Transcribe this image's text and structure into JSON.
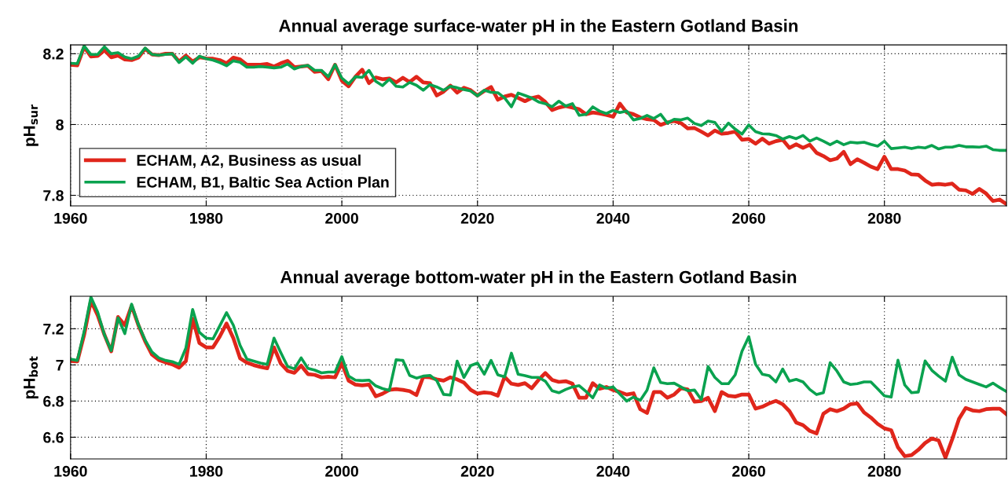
{
  "chart_data": [
    {
      "type": "line",
      "title": "Annual average surface-water pH in the Eastern Gotland Basin",
      "ylabel": "pH$_{sur}$",
      "x": [
        1960,
        1961,
        1962,
        1963,
        1964,
        1965,
        1966,
        1967,
        1968,
        1969,
        1970,
        1971,
        1972,
        1973,
        1974,
        1975,
        1976,
        1977,
        1978,
        1979,
        1980,
        1981,
        1982,
        1983,
        1984,
        1985,
        1986,
        1987,
        1988,
        1989,
        1990,
        1991,
        1992,
        1993,
        1994,
        1995,
        1996,
        1997,
        1998,
        1999,
        2000,
        2001,
        2002,
        2003,
        2004,
        2005,
        2006,
        2007,
        2008,
        2009,
        2010,
        2011,
        2012,
        2013,
        2014,
        2015,
        2016,
        2017,
        2018,
        2019,
        2020,
        2021,
        2022,
        2023,
        2024,
        2025,
        2026,
        2027,
        2028,
        2029,
        2030,
        2031,
        2032,
        2033,
        2034,
        2035,
        2036,
        2037,
        2038,
        2039,
        2040,
        2041,
        2042,
        2043,
        2044,
        2045,
        2046,
        2047,
        2048,
        2049,
        2050,
        2051,
        2052,
        2053,
        2054,
        2055,
        2056,
        2057,
        2058,
        2059,
        2060,
        2061,
        2062,
        2063,
        2064,
        2065,
        2066,
        2067,
        2068,
        2069,
        2070,
        2071,
        2072,
        2073,
        2074,
        2075,
        2076,
        2077,
        2078,
        2079,
        2080,
        2081,
        2082,
        2083,
        2084,
        2085,
        2086,
        2087,
        2088,
        2089,
        2090,
        2091,
        2092,
        2093,
        2094,
        2095,
        2096,
        2097,
        2098
      ],
      "series": [
        {
          "name": "ECHAM, A2, Business as usual",
          "color": "#e0261b",
          "values": [
            8.169,
            8.167,
            8.219,
            8.192,
            8.194,
            8.21,
            8.19,
            8.195,
            8.184,
            8.182,
            8.189,
            8.214,
            8.198,
            8.196,
            8.2,
            8.2,
            8.178,
            8.195,
            8.178,
            8.19,
            8.187,
            8.186,
            8.182,
            8.173,
            8.189,
            8.184,
            8.169,
            8.169,
            8.169,
            8.171,
            8.164,
            8.173,
            8.18,
            8.162,
            8.164,
            8.166,
            8.149,
            8.151,
            8.128,
            8.169,
            8.124,
            8.108,
            8.135,
            8.155,
            8.117,
            8.133,
            8.128,
            8.13,
            8.119,
            8.132,
            8.12,
            8.135,
            8.119,
            8.117,
            8.082,
            8.093,
            8.11,
            8.09,
            8.104,
            8.097,
            8.082,
            8.095,
            8.106,
            8.07,
            8.079,
            8.084,
            8.075,
            8.066,
            8.075,
            8.079,
            8.064,
            8.041,
            8.048,
            8.052,
            8.048,
            8.043,
            8.029,
            8.034,
            8.031,
            8.027,
            8.022,
            8.059,
            8.034,
            8.029,
            8.02,
            8.015,
            8.013,
            7.999,
            8.006,
            8.01,
            8.004,
            7.989,
            7.99,
            7.98,
            7.969,
            7.983,
            7.974,
            7.976,
            7.98,
            7.957,
            7.959,
            7.946,
            7.96,
            7.946,
            7.953,
            7.957,
            7.934,
            7.944,
            7.934,
            7.943,
            7.92,
            7.911,
            7.899,
            7.904,
            7.923,
            7.888,
            7.902,
            7.892,
            7.881,
            7.874,
            7.909,
            7.874,
            7.874,
            7.87,
            7.859,
            7.858,
            7.842,
            7.83,
            7.832,
            7.83,
            7.833,
            7.816,
            7.814,
            7.804,
            7.818,
            7.805,
            7.784,
            7.788,
            7.775
          ]
        },
        {
          "name": "ECHAM, B1, Baltic Sea Action Plan",
          "color": "#0aa24f",
          "values": [
            8.173,
            8.172,
            8.222,
            8.198,
            8.198,
            8.22,
            8.2,
            8.203,
            8.191,
            8.186,
            8.193,
            8.216,
            8.198,
            8.196,
            8.198,
            8.2,
            8.175,
            8.191,
            8.173,
            8.193,
            8.186,
            8.182,
            8.175,
            8.166,
            8.18,
            8.176,
            8.162,
            8.162,
            8.164,
            8.162,
            8.16,
            8.162,
            8.171,
            8.157,
            8.164,
            8.167,
            8.153,
            8.153,
            8.135,
            8.169,
            8.131,
            8.115,
            8.135,
            8.133,
            8.153,
            8.122,
            8.11,
            8.128,
            8.108,
            8.106,
            8.119,
            8.111,
            8.097,
            8.113,
            8.106,
            8.097,
            8.108,
            8.104,
            8.099,
            8.095,
            8.081,
            8.097,
            8.091,
            8.09,
            8.075,
            8.05,
            8.089,
            8.082,
            8.075,
            8.064,
            8.059,
            8.05,
            8.066,
            8.052,
            8.059,
            8.026,
            8.029,
            8.05,
            8.038,
            8.031,
            8.04,
            8.034,
            8.038,
            8.013,
            8.017,
            8.026,
            8.017,
            8.029,
            8.004,
            8.015,
            8.013,
            8.018,
            8.003,
            7.997,
            8.01,
            8.006,
            7.981,
            8.004,
            7.987,
            7.973,
            7.999,
            7.98,
            7.974,
            7.973,
            7.969,
            7.959,
            7.966,
            7.96,
            7.969,
            7.953,
            7.962,
            7.953,
            7.943,
            7.953,
            7.943,
            7.95,
            7.948,
            7.95,
            7.944,
            7.939,
            7.953,
            7.932,
            7.934,
            7.936,
            7.932,
            7.936,
            7.934,
            7.941,
            7.931,
            7.936,
            7.936,
            7.941,
            7.937,
            7.937,
            7.936,
            7.939,
            7.929,
            7.927,
            7.927
          ]
        }
      ],
      "xlim": [
        1960,
        2098
      ],
      "xticks": [
        1960,
        1980,
        2000,
        2020,
        2040,
        2060,
        2080
      ],
      "ylim": [
        7.77,
        8.225
      ],
      "yticks": [
        7.8,
        8,
        8.2
      ],
      "grid": true,
      "legend": "bottom left",
      "line_style": "solid"
    },
    {
      "type": "line",
      "title": "Annual average bottom-water pH in the Eastern Gotland Basin",
      "ylabel": "pH$_{bot}$",
      "x": [
        1960,
        1961,
        1962,
        1963,
        1964,
        1965,
        1966,
        1967,
        1968,
        1969,
        1970,
        1971,
        1972,
        1973,
        1974,
        1975,
        1976,
        1977,
        1978,
        1979,
        1980,
        1981,
        1982,
        1983,
        1984,
        1985,
        1986,
        1987,
        1988,
        1989,
        1990,
        1991,
        1992,
        1993,
        1994,
        1995,
        1996,
        1997,
        1998,
        1999,
        2000,
        2001,
        2002,
        2003,
        2004,
        2005,
        2006,
        2007,
        2008,
        2009,
        2010,
        2011,
        2012,
        2013,
        2014,
        2015,
        2016,
        2017,
        2018,
        2019,
        2020,
        2021,
        2022,
        2023,
        2024,
        2025,
        2026,
        2027,
        2028,
        2029,
        2030,
        2031,
        2032,
        2033,
        2034,
        2035,
        2036,
        2037,
        2038,
        2039,
        2040,
        2041,
        2042,
        2043,
        2044,
        2045,
        2046,
        2047,
        2048,
        2049,
        2050,
        2051,
        2052,
        2053,
        2054,
        2055,
        2056,
        2057,
        2058,
        2059,
        2060,
        2061,
        2062,
        2063,
        2064,
        2065,
        2066,
        2067,
        2068,
        2069,
        2070,
        2071,
        2072,
        2073,
        2074,
        2075,
        2076,
        2077,
        2078,
        2079,
        2080,
        2081,
        2082,
        2083,
        2084,
        2085,
        2086,
        2087,
        2088,
        2089,
        2090,
        2091,
        2092,
        2093,
        2094,
        2095,
        2096,
        2097,
        2098
      ],
      "series": [
        {
          "color": "#e0261b",
          "values": [
            7.021,
            7.019,
            7.166,
            7.355,
            7.274,
            7.166,
            7.075,
            7.265,
            7.22,
            7.328,
            7.22,
            7.13,
            7.057,
            7.028,
            7.014,
            7.003,
            6.985,
            7.021,
            7.256,
            7.121,
            7.097,
            7.097,
            7.157,
            7.229,
            7.148,
            7.036,
            7.012,
            6.999,
            6.989,
            6.981,
            7.097,
            7.007,
            6.967,
            6.956,
            6.996,
            6.949,
            6.945,
            6.931,
            6.935,
            6.931,
            7.01,
            6.913,
            6.891,
            6.887,
            6.891,
            6.826,
            6.841,
            6.862,
            6.866,
            6.862,
            6.855,
            6.833,
            6.934,
            6.931,
            6.92,
            6.913,
            6.931,
            6.92,
            6.902,
            6.862,
            6.841,
            6.848,
            6.844,
            6.83,
            6.934,
            6.896,
            6.889,
            6.899,
            6.871,
            6.917,
            6.955,
            6.917,
            6.906,
            6.91,
            6.896,
            6.818,
            6.818,
            6.899,
            6.868,
            6.878,
            6.861,
            6.85,
            6.836,
            6.843,
            6.755,
            6.734,
            6.85,
            6.85,
            6.818,
            6.836,
            6.871,
            6.864,
            6.797,
            6.8,
            6.818,
            6.744,
            6.85,
            6.829,
            6.825,
            6.836,
            6.836,
            6.758,
            6.769,
            6.787,
            6.801,
            6.783,
            6.744,
            6.681,
            6.667,
            6.635,
            6.621,
            6.73,
            6.755,
            6.744,
            6.758,
            6.783,
            6.787,
            6.737,
            6.709,
            6.674,
            6.649,
            6.639,
            6.544,
            6.495,
            6.501,
            6.53,
            6.568,
            6.593,
            6.582,
            6.487,
            6.589,
            6.702,
            6.762,
            6.748,
            6.744,
            6.755,
            6.758,
            6.758,
            6.727
          ]
        },
        {
          "color": "#0aa24f",
          "values": [
            7.032,
            7.025,
            7.184,
            7.375,
            7.292,
            7.166,
            7.079,
            7.26,
            7.173,
            7.336,
            7.223,
            7.137,
            7.072,
            7.039,
            7.025,
            7.018,
            7.003,
            7.093,
            7.307,
            7.18,
            7.148,
            7.144,
            7.216,
            7.289,
            7.22,
            7.108,
            7.032,
            7.021,
            7.01,
            7.003,
            7.148,
            7.068,
            6.992,
            6.978,
            7.039,
            6.981,
            6.971,
            6.956,
            6.96,
            6.96,
            7.046,
            6.938,
            6.916,
            6.913,
            6.916,
            6.884,
            6.869,
            6.859,
            7.028,
            7.025,
            6.942,
            6.927,
            6.938,
            6.942,
            6.913,
            6.837,
            6.833,
            7.021,
            6.931,
            6.996,
            7.01,
            6.949,
            7.025,
            6.945,
            6.934,
            7.065,
            6.948,
            6.941,
            6.931,
            6.931,
            6.91,
            6.857,
            6.846,
            6.864,
            6.878,
            6.885,
            6.853,
            6.818,
            6.889,
            6.871,
            6.878,
            6.839,
            6.8,
            6.822,
            6.804,
            6.86,
            6.984,
            6.903,
            6.896,
            6.899,
            6.878,
            6.857,
            6.861,
            6.808,
            6.991,
            6.931,
            6.896,
            6.896,
            6.945,
            7.075,
            7.156,
            7.004,
            6.948,
            6.941,
            6.906,
            6.977,
            6.91,
            6.92,
            6.906,
            6.864,
            6.836,
            6.846,
            7.012,
            6.966,
            6.906,
            6.892,
            6.896,
            6.906,
            6.906,
            6.868,
            6.829,
            6.822,
            7.026,
            6.889,
            6.846,
            6.85,
            7.022,
            6.97,
            6.938,
            6.91,
            7.043,
            6.945,
            6.92,
            6.906,
            6.892,
            6.878,
            6.899,
            6.875,
            6.853
          ]
        }
      ],
      "xlim": [
        1960,
        2098
      ],
      "xticks": [
        1960,
        1980,
        2000,
        2020,
        2040,
        2060,
        2080
      ],
      "ylim": [
        6.48,
        7.38
      ],
      "yticks": [
        6.6,
        6.8,
        7,
        7.2
      ],
      "grid": true,
      "line_style": "solid"
    }
  ]
}
